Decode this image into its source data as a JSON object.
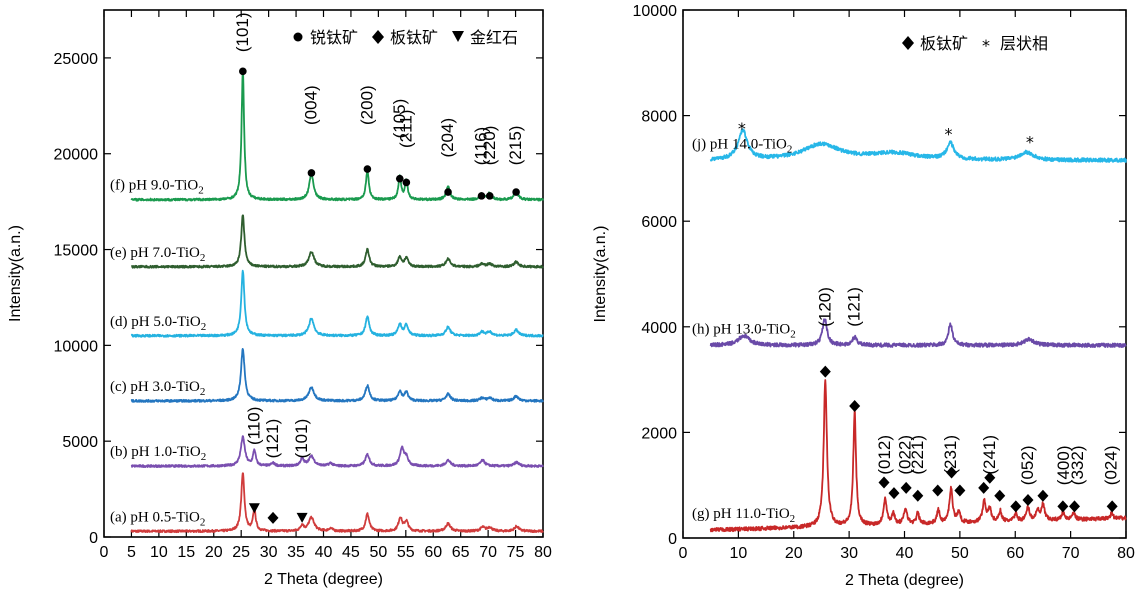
{
  "chart_data": [
    {
      "type": "line",
      "xlabel": "2 Theta (degree)",
      "ylabel": "Intensity(a.n.)",
      "xlim": [
        0,
        80
      ],
      "ylim": [
        0,
        27500
      ],
      "xticks": [
        "0",
        "5",
        "10",
        "15",
        "20",
        "25",
        "30",
        "35",
        "40",
        "45",
        "50",
        "55",
        "60",
        "65",
        "70",
        "75",
        "80"
      ],
      "yticks": [
        "0",
        "5000",
        "10000",
        "15000",
        "20000",
        "25000"
      ],
      "legend": {
        "position": "top-right",
        "items": [
          {
            "marker": "●",
            "label": "锐钛矿"
          },
          {
            "marker": "◆",
            "label": "板钛矿"
          },
          {
            "marker": "▼",
            "label": "金红石"
          }
        ]
      },
      "series": [
        {
          "name": "(a) pH 0.5-TiO",
          "sub": "2",
          "color": "#d03c3c",
          "baseline": 300,
          "peaks": [
            [
              25.3,
              3000,
              0.35
            ],
            [
              27.4,
              1100,
              0.3
            ],
            [
              36.1,
              300,
              0.35
            ],
            [
              37.8,
              700,
              0.6
            ],
            [
              41.3,
              150,
              0.4
            ],
            [
              48.0,
              900,
              0.4
            ],
            [
              54.0,
              700,
              0.4
            ],
            [
              55.1,
              500,
              0.4
            ],
            [
              62.7,
              400,
              0.5
            ],
            [
              69.0,
              200,
              0.5
            ],
            [
              70.3,
              200,
              0.5
            ],
            [
              75.2,
              250,
              0.5
            ]
          ]
        },
        {
          "name": "(b) pH 1.0-TiO",
          "sub": "2",
          "color": "#7a4fb0",
          "baseline": 3700,
          "peaks": [
            [
              25.3,
              1500,
              0.45
            ],
            [
              27.4,
              800,
              0.3
            ],
            [
              30.8,
              150,
              0.4
            ],
            [
              36.1,
              350,
              0.4
            ],
            [
              37.8,
              500,
              0.6
            ],
            [
              41.3,
              150,
              0.4
            ],
            [
              48.0,
              600,
              0.45
            ],
            [
              54.3,
              900,
              0.45
            ],
            [
              55.1,
              400,
              0.4
            ],
            [
              62.7,
              300,
              0.5
            ],
            [
              69.0,
              300,
              0.5
            ],
            [
              75.2,
              200,
              0.5
            ]
          ]
        },
        {
          "name": "(c) pH 3.0-TiO",
          "sub": "2",
          "color": "#2476c0",
          "baseline": 7100,
          "peaks": [
            [
              25.3,
              2700,
              0.4
            ],
            [
              37.8,
              700,
              0.6
            ],
            [
              48.0,
              800,
              0.45
            ],
            [
              53.9,
              500,
              0.4
            ],
            [
              55.1,
              450,
              0.4
            ],
            [
              62.7,
              350,
              0.5
            ],
            [
              68.9,
              150,
              0.5
            ],
            [
              70.3,
              150,
              0.5
            ],
            [
              75.1,
              250,
              0.5
            ]
          ]
        },
        {
          "name": "(d) pH 5.0-TiO",
          "sub": "2",
          "color": "#25b2e0",
          "baseline": 10500,
          "peaks": [
            [
              25.3,
              3400,
              0.35
            ],
            [
              37.8,
              900,
              0.55
            ],
            [
              48.0,
              1000,
              0.4
            ],
            [
              53.9,
              600,
              0.4
            ],
            [
              55.1,
              550,
              0.4
            ],
            [
              62.7,
              450,
              0.5
            ],
            [
              68.9,
              200,
              0.5
            ],
            [
              70.3,
              200,
              0.5
            ],
            [
              75.1,
              300,
              0.5
            ]
          ]
        },
        {
          "name": "(e) pH 7.0-TiO",
          "sub": "2",
          "color": "#2f5e2f",
          "baseline": 14100,
          "peaks": [
            [
              25.3,
              2700,
              0.35
            ],
            [
              37.8,
              800,
              0.55
            ],
            [
              48.0,
              900,
              0.4
            ],
            [
              53.9,
              500,
              0.4
            ],
            [
              55.1,
              450,
              0.4
            ],
            [
              62.7,
              400,
              0.5
            ],
            [
              68.9,
              150,
              0.5
            ],
            [
              70.3,
              150,
              0.5
            ],
            [
              75.1,
              250,
              0.5
            ]
          ]
        },
        {
          "name": "(f) pH 9.0-TiO",
          "sub": "2",
          "color": "#1a9a4e",
          "baseline": 17600,
          "peaks": [
            [
              25.3,
              6700,
              0.28
            ],
            [
              37.8,
              1400,
              0.45
            ],
            [
              48.0,
              1500,
              0.32
            ],
            [
              53.9,
              1200,
              0.3
            ],
            [
              55.1,
              1000,
              0.3
            ],
            [
              62.7,
              700,
              0.4
            ],
            [
              68.8,
              300,
              0.4
            ],
            [
              70.3,
              350,
              0.4
            ],
            [
              75.1,
              500,
              0.4
            ]
          ]
        }
      ],
      "annotations": {
        "anatase_hkl": [
          [
            25.3,
            "(101)"
          ],
          [
            37.8,
            "(004)"
          ],
          [
            48.0,
            "(200)"
          ],
          [
            53.9,
            "(105)"
          ],
          [
            55.1,
            "(211)"
          ],
          [
            62.7,
            "(204)"
          ],
          [
            68.8,
            "(116)"
          ],
          [
            70.3,
            "(220)"
          ],
          [
            75.1,
            "(215)"
          ]
        ],
        "anatase_markers": [
          [
            25.3,
            24300
          ],
          [
            37.8,
            19000
          ],
          [
            48.0,
            19200
          ],
          [
            53.9,
            18700
          ],
          [
            55.1,
            18500
          ],
          [
            62.7,
            18000
          ],
          [
            68.8,
            17800
          ],
          [
            70.3,
            17800
          ],
          [
            75.1,
            18000
          ]
        ],
        "other_hkl": [
          [
            27.4,
            "(110)",
            4800
          ],
          [
            30.8,
            "(121)",
            4100
          ],
          [
            36.1,
            "(101)",
            4100
          ]
        ],
        "other_markers": [
          [
            "tri",
            27.4,
            1500
          ],
          [
            "dia",
            30.8,
            1000
          ],
          [
            "tri",
            36.1,
            1000
          ]
        ]
      }
    },
    {
      "type": "line",
      "xlabel": "2 Theta (degree)",
      "ylabel": "Intensity(a.n.)",
      "xlim": [
        0,
        80
      ],
      "ylim": [
        0,
        10000
      ],
      "xticks": [
        "0",
        "10",
        "20",
        "30",
        "40",
        "50",
        "60",
        "70",
        "80"
      ],
      "yticks": [
        "0",
        "2000",
        "4000",
        "6000",
        "8000",
        "10000"
      ],
      "legend": {
        "position": "top-right",
        "items": [
          {
            "marker": "◆",
            "label": "板钛矿"
          },
          {
            "marker": "*",
            "label": "层状相"
          }
        ]
      },
      "series": [
        {
          "name": "(g) pH 11.0-TiO",
          "sub": "2",
          "color": "#c82828",
          "baseline": 150,
          "slope": 3,
          "peaks": [
            [
              25.7,
              2750,
              0.35
            ],
            [
              31.0,
              2150,
              0.3
            ],
            [
              36.5,
              500,
              0.35
            ],
            [
              38.0,
              200,
              0.3
            ],
            [
              40.2,
              300,
              0.35
            ],
            [
              42.4,
              200,
              0.3
            ],
            [
              46.1,
              250,
              0.3
            ],
            [
              48.4,
              650,
              0.35
            ],
            [
              49.8,
              200,
              0.3
            ],
            [
              54.4,
              400,
              0.35
            ],
            [
              55.4,
              250,
              0.3
            ],
            [
              57.3,
              200,
              0.3
            ],
            [
              60.1,
              150,
              0.3
            ],
            [
              62.3,
              250,
              0.35
            ],
            [
              64.0,
              200,
              0.3
            ],
            [
              65.0,
              300,
              0.35
            ],
            [
              68.6,
              150,
              0.3
            ],
            [
              70.5,
              150,
              0.3
            ],
            [
              77.4,
              100,
              0.3
            ]
          ]
        },
        {
          "name": "(h) pH 13.0-TiO",
          "sub": "2",
          "color": "#6a4aa8",
          "baseline": 3650,
          "peaks": [
            [
              11.0,
              180,
              1.2
            ],
            [
              25.6,
              500,
              0.5
            ],
            [
              31.0,
              150,
              0.5
            ],
            [
              48.3,
              400,
              0.45
            ],
            [
              62.5,
              120,
              1.0
            ]
          ]
        },
        {
          "name": "(j) pH 14.0-TiO",
          "sub": "2",
          "color": "#27b7e8",
          "baseline": 7150,
          "peaks": [
            [
              10.8,
              550,
              1.0
            ],
            [
              25.0,
              300,
              4.0
            ],
            [
              38.0,
              130,
              5.0
            ],
            [
              48.3,
              300,
              0.8
            ],
            [
              62.0,
              150,
              1.5
            ]
          ]
        }
      ],
      "annotations": {
        "hkl": [
          [
            25.7,
            "(120)",
            4000
          ],
          [
            31.0,
            "(121)",
            4000
          ],
          [
            36.5,
            "(012)",
            1200
          ],
          [
            40.2,
            "(022)",
            1200
          ],
          [
            42.4,
            "(221)",
            1200
          ],
          [
            48.4,
            "(231)",
            1200
          ],
          [
            55.4,
            "(241)",
            1200
          ],
          [
            62.3,
            "(052)",
            1000
          ],
          [
            68.8,
            "(400)",
            1000
          ],
          [
            71.3,
            "(332)",
            1000
          ],
          [
            77.4,
            "(024)",
            1000
          ]
        ],
        "diamonds": [
          [
            25.7,
            3150
          ],
          [
            31.0,
            2500
          ],
          [
            36.3,
            1050
          ],
          [
            38.1,
            850
          ],
          [
            40.3,
            950
          ],
          [
            42.4,
            800
          ],
          [
            46.0,
            900
          ],
          [
            48.5,
            1240
          ],
          [
            50.0,
            900
          ],
          [
            54.3,
            950
          ],
          [
            55.4,
            1140
          ],
          [
            57.2,
            800
          ],
          [
            60.1,
            600
          ],
          [
            62.3,
            720
          ],
          [
            65.0,
            800
          ],
          [
            68.6,
            600
          ],
          [
            70.7,
            600
          ],
          [
            77.5,
            600
          ]
        ],
        "stars": [
          [
            11.0,
            7800
          ],
          [
            48.3,
            7700
          ],
          [
            63.0,
            7550
          ]
        ]
      }
    }
  ]
}
